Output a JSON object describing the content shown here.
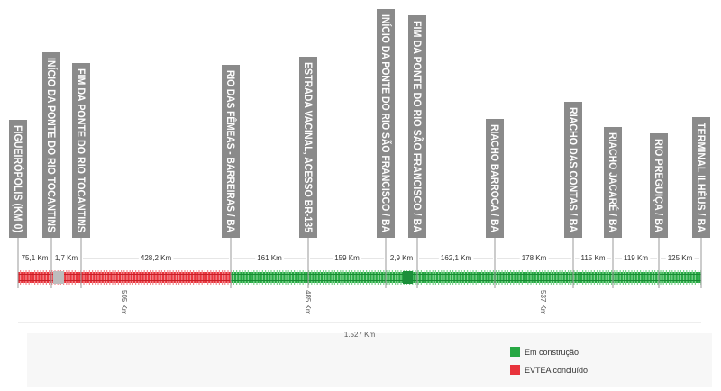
{
  "colors": {
    "construction": "#27a844",
    "evtea": "#e8343c",
    "marker": "#8a8a8a",
    "junction": "#bdbdbd"
  },
  "stations": [
    {
      "label": "FIGUEIRÓPOLIS (KM 0)"
    },
    {
      "label": "INÍCIO DA PONTE DO RIO TOCANTINS"
    },
    {
      "label": "FIM DA PONTE DO RIO TOCANTINS"
    },
    {
      "label": "RIO DAS FÊMEAS - BARREIRAS / BA"
    },
    {
      "label": "ESTRADA VACINAL, ACESSO BR-135"
    },
    {
      "label": "INÍCIO DA PONTE DO RIO SÃO FRANCISCO / BA"
    },
    {
      "label": "FIM DA PONTE DO RIO SÃO FRANCISCO / BA"
    },
    {
      "label": "RIACHO BARROCA / BA"
    },
    {
      "label": "RIACHO DAS CONTAS / BA"
    },
    {
      "label": "RIACHO JACARÉ / BA"
    },
    {
      "label": "RIO PREGUIÇA / BA"
    },
    {
      "label": "TERMINAL ILHÉUS / BA"
    }
  ],
  "segments": [
    {
      "distance": "75,1 Km"
    },
    {
      "distance": "1,7 Km"
    },
    {
      "distance": "428,2 Km"
    },
    {
      "distance": "161 Km"
    },
    {
      "distance": "159 Km"
    },
    {
      "distance": "2,9 Km"
    },
    {
      "distance": "162,1 Km"
    },
    {
      "distance": "178 Km"
    },
    {
      "distance": "115 Km"
    },
    {
      "distance": "119 Km"
    },
    {
      "distance": "125 Km"
    }
  ],
  "sections": [
    {
      "total": "505 Km",
      "status": "evtea"
    },
    {
      "total": "485 Km",
      "status": "construction"
    },
    {
      "total": "537 Km",
      "status": "construction"
    }
  ],
  "grand_total": "1.527 Km",
  "legend": {
    "construction": "Em construção",
    "evtea": "EVTEA concluído"
  }
}
